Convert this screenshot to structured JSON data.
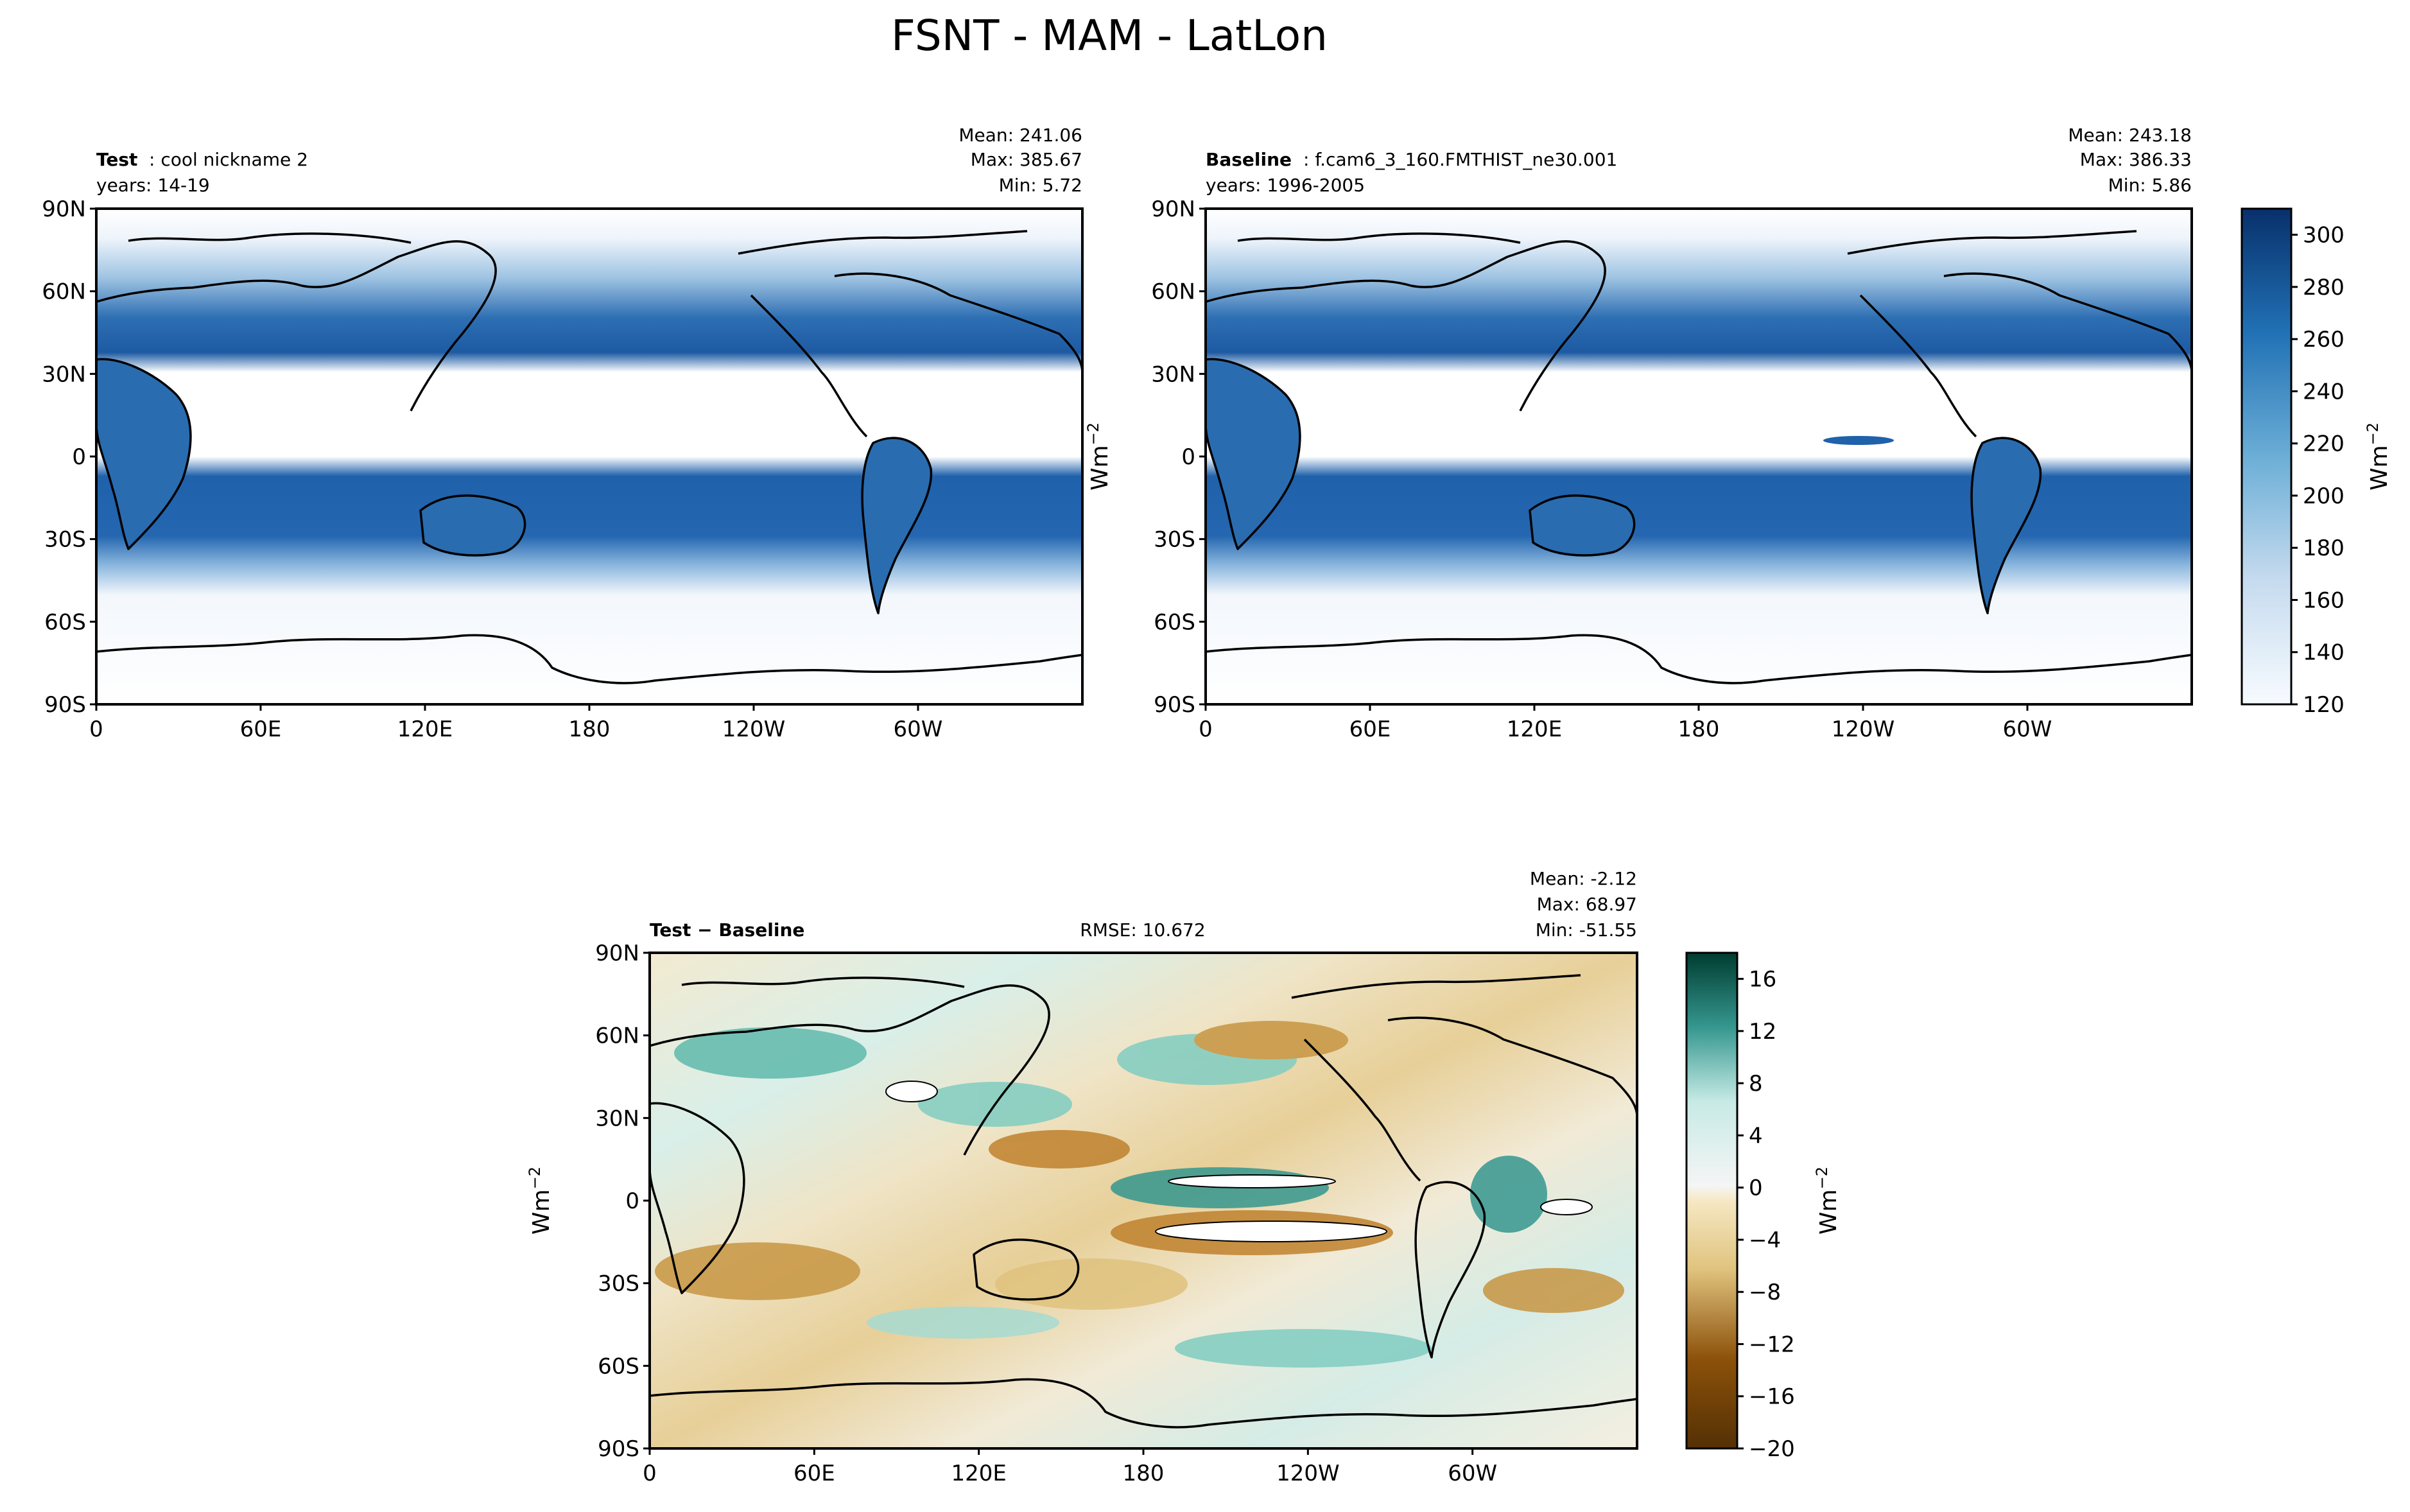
{
  "figure": {
    "title": "FSNT - MAM - LatLon"
  },
  "chart_data": [
    {
      "type": "heatmap",
      "panel": "test",
      "label_bold": "Test",
      "label_rest": ": cool nickname 2",
      "years": "years: 14-19",
      "stats": {
        "mean": "Mean: 241.06",
        "max": "Max: 385.67",
        "min": "Min:  5.72"
      },
      "yticks": [
        "90N",
        "60N",
        "30N",
        "0",
        "30S",
        "60S",
        "90S"
      ],
      "xticks": [
        "0",
        "60E",
        "120E",
        "180",
        "120W",
        "60W"
      ],
      "colorscale": "blues",
      "zlim": [
        120,
        310
      ]
    },
    {
      "type": "heatmap",
      "panel": "baseline",
      "label_bold": "Baseline",
      "label_rest": ": f.cam6_3_160.FMTHIST_ne30.001",
      "years": "years: 1996-2005",
      "stats": {
        "mean": "Mean: 243.18",
        "max": "Max: 386.33",
        "min": "Min:  5.86"
      },
      "yticks": [
        "90N",
        "60N",
        "30N",
        "0",
        "30S",
        "60S",
        "90S"
      ],
      "xticks": [
        "0",
        "60E",
        "120E",
        "180",
        "120W",
        "60W"
      ],
      "colorbar": {
        "ticks": [
          120,
          140,
          160,
          180,
          200,
          220,
          240,
          260,
          280,
          300
        ],
        "tick_labels": [
          "120",
          "140",
          "160",
          "180",
          "200",
          "220",
          "240",
          "260",
          "280",
          "300"
        ],
        "range": [
          120,
          310
        ],
        "label": "Wm",
        "label_sup": "−2"
      },
      "side_unit": {
        "label": "Wm",
        "label_sup": "−2"
      },
      "colorscale": "blues",
      "zlim": [
        120,
        310
      ]
    },
    {
      "type": "heatmap",
      "panel": "diff",
      "label_bold": "Test − Baseline",
      "rmse": "RMSE: 10.672",
      "stats": {
        "mean": "Mean: -2.12",
        "max": "Max: 68.97",
        "min": "Min: -51.55"
      },
      "yticks": [
        "90N",
        "60N",
        "30N",
        "0",
        "30S",
        "60S",
        "90S"
      ],
      "xticks": [
        "0",
        "60E",
        "120E",
        "180",
        "120W",
        "60W"
      ],
      "side_unit": {
        "label": "Wm",
        "label_sup": "−2"
      },
      "colorbar": {
        "ticks": [
          -20,
          -16,
          -12,
          -8,
          -4,
          0,
          4,
          8,
          12,
          16
        ],
        "tick_labels": [
          "−20",
          "−16",
          "−12",
          "−8",
          "−4",
          "0",
          "4",
          "8",
          "12",
          "16"
        ],
        "range": [
          -20,
          18
        ],
        "label": "Wm",
        "label_sup": "−2"
      },
      "colorscale": "brbg",
      "zlim": [
        -20,
        18
      ]
    }
  ],
  "colors": {
    "blue_dark": "#08306b",
    "blue_mid": "#3a7bbf",
    "blue_light": "#deebf7",
    "brown_dark": "#543005",
    "brown_mid": "#bf812d",
    "cream": "#f5f0e0",
    "teal_mid": "#35978f",
    "teal_dark": "#003c30",
    "coast": "#000000"
  }
}
